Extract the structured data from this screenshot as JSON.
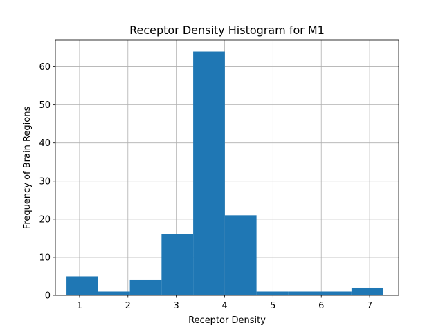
{
  "chart_data": {
    "type": "bar",
    "subtype": "histogram",
    "title": "Receptor Density Histogram for M1",
    "xlabel": "Receptor Density",
    "ylabel": "Frequency of Brain Regions",
    "xlim": [
      0.5,
      7.6
    ],
    "ylim": [
      0,
      67
    ],
    "xticks": [
      1,
      2,
      3,
      4,
      5,
      6,
      7
    ],
    "yticks": [
      0,
      10,
      20,
      30,
      40,
      50,
      60
    ],
    "grid": true,
    "bar_color": "#1f77b4",
    "bins": [
      {
        "start": 0.73,
        "end": 1.385,
        "value": 5
      },
      {
        "start": 1.385,
        "end": 2.04,
        "value": 1
      },
      {
        "start": 2.04,
        "end": 2.695,
        "value": 4
      },
      {
        "start": 2.695,
        "end": 3.35,
        "value": 16
      },
      {
        "start": 3.35,
        "end": 4.005,
        "value": 64
      },
      {
        "start": 4.005,
        "end": 4.66,
        "value": 21
      },
      {
        "start": 4.66,
        "end": 5.315,
        "value": 1
      },
      {
        "start": 5.315,
        "end": 5.97,
        "value": 1
      },
      {
        "start": 5.97,
        "end": 6.625,
        "value": 1
      },
      {
        "start": 6.625,
        "end": 7.28,
        "value": 2
      }
    ]
  }
}
